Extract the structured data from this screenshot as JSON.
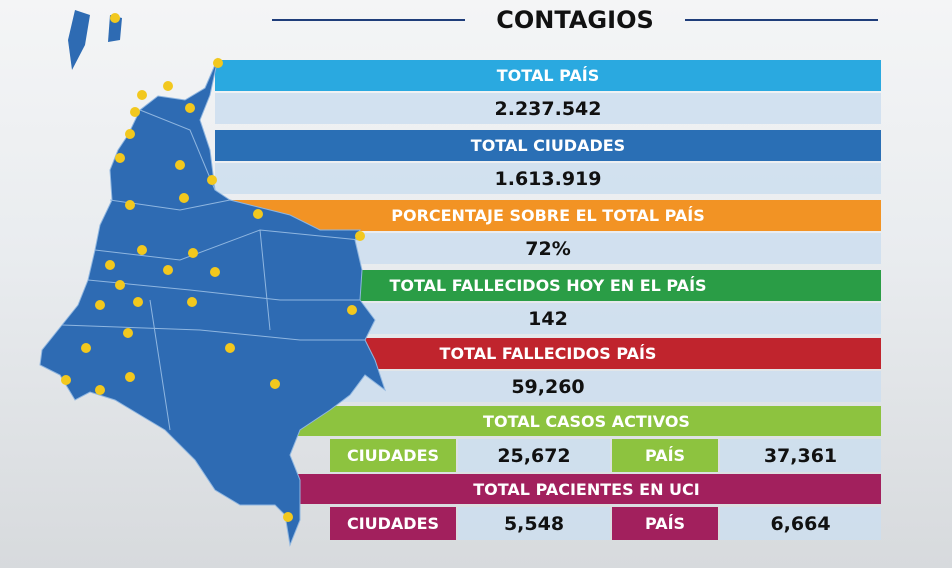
{
  "title": "CONTAGIOS",
  "rows": [
    {
      "label": "TOTAL PAÍS",
      "value": "2.237.542",
      "color": "#2aa9e0"
    },
    {
      "label": "TOTAL CIUDADES",
      "value": "1.613.919",
      "color": "#2a6fb5"
    },
    {
      "label": "PORCENTAJE SOBRE EL TOTAL PAÍS",
      "value": "72%",
      "color": "#f29324"
    },
    {
      "label": "TOTAL FALLECIDOS HOY EN EL PAÍS",
      "value": "142",
      "color": "#2a9d46"
    },
    {
      "label": "TOTAL FALLECIDOS PAÍS",
      "value": "59,260",
      "color": "#c0242d"
    }
  ],
  "active": {
    "label": "TOTAL CASOS ACTIVOS",
    "color": "#8dc33f",
    "cities_label": "CIUDADES",
    "cities_value": "25,672",
    "country_label": "PAÍS",
    "country_value": "37,361"
  },
  "icu": {
    "label": "TOTAL PACIENTES EN UCI",
    "color": "#a2205d",
    "cities_label": "CIUDADES",
    "cities_value": "5,548",
    "country_label": "PAÍS",
    "country_value": "6,664"
  }
}
